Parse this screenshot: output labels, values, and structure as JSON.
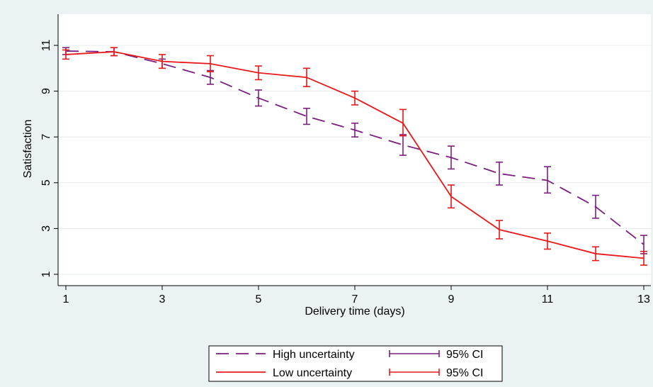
{
  "chart_data": {
    "type": "line",
    "title": "",
    "xlabel": "Delivery time (days)",
    "ylabel": "Satisfaction",
    "x": [
      1,
      2,
      3,
      4,
      5,
      6,
      7,
      8,
      9,
      10,
      11,
      12,
      13
    ],
    "xlim": [
      1,
      13
    ],
    "ylim": [
      0.6,
      12.2
    ],
    "xticks": [
      1,
      3,
      5,
      7,
      9,
      11,
      13
    ],
    "yticks": [
      1,
      3,
      5,
      7,
      9,
      11
    ],
    "grid": "horizontal",
    "legend_position": "bottom",
    "series": [
      {
        "name": "High uncertainty",
        "style": "dashed",
        "color": "#7b1f7f",
        "values": [
          10.75,
          10.72,
          10.2,
          9.6,
          8.7,
          7.9,
          7.3,
          6.65,
          6.1,
          5.4,
          5.1,
          3.95,
          2.3
        ],
        "ci_low": [
          10.6,
          10.55,
          10.0,
          9.3,
          8.35,
          7.55,
          7.0,
          6.2,
          5.6,
          4.9,
          4.55,
          3.45,
          1.9
        ],
        "ci_high": [
          10.9,
          10.9,
          10.4,
          9.9,
          9.05,
          8.25,
          7.6,
          7.1,
          6.6,
          5.9,
          5.7,
          4.45,
          2.7
        ]
      },
      {
        "name": "Low uncertainty",
        "style": "solid",
        "color": "#e8181b",
        "values": [
          10.6,
          10.72,
          10.3,
          10.2,
          9.8,
          9.6,
          8.7,
          7.6,
          4.4,
          2.95,
          2.45,
          1.9,
          1.7
        ],
        "ci_low": [
          10.4,
          10.55,
          10.0,
          9.85,
          9.5,
          9.2,
          8.4,
          7.05,
          3.9,
          2.55,
          2.1,
          1.6,
          1.4
        ],
        "ci_high": [
          10.8,
          10.9,
          10.6,
          10.55,
          10.1,
          10.0,
          9.0,
          8.2,
          4.9,
          3.35,
          2.8,
          2.2,
          2.0
        ]
      }
    ],
    "legend": [
      {
        "label": "High uncertainty",
        "kind": "line",
        "series": 0
      },
      {
        "label": "95% CI",
        "kind": "ci",
        "series": 0
      },
      {
        "label": "Low uncertainty",
        "kind": "line",
        "series": 1
      },
      {
        "label": "95% CI",
        "kind": "ci",
        "series": 1
      }
    ]
  }
}
